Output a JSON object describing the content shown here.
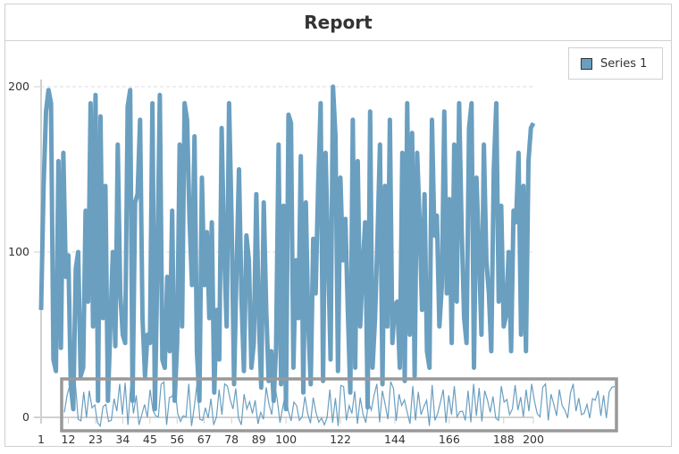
{
  "chart_data": {
    "type": "line",
    "title": "Report",
    "xlabel": "",
    "ylabel": "",
    "xlim": [
      1,
      200
    ],
    "ylim": [
      0,
      200
    ],
    "x_ticks": [
      1,
      12,
      23,
      34,
      45,
      56,
      67,
      78,
      89,
      100,
      122,
      144,
      166,
      188,
      200
    ],
    "y_ticks": [
      0,
      100,
      200
    ],
    "grid": "horizontal dashed",
    "legend_position": "top-right",
    "range_navigator": true,
    "series": [
      {
        "name": "Series 1",
        "color": "#6a9fc0",
        "values": [
          65,
          140,
          185,
          198,
          190,
          35,
          28,
          155,
          42,
          160,
          85,
          98,
          20,
          5,
          90,
          100,
          25,
          30,
          125,
          70,
          190,
          55,
          195,
          10,
          182,
          60,
          140,
          10,
          55,
          100,
          43,
          165,
          75,
          50,
          45,
          188,
          198,
          10,
          130,
          135,
          180,
          60,
          25,
          50,
          45,
          190,
          5,
          90,
          195,
          35,
          30,
          85,
          40,
          125,
          10,
          45,
          165,
          55,
          190,
          180,
          120,
          80,
          170,
          40,
          10,
          145,
          80,
          112,
          60,
          118,
          15,
          65,
          35,
          175,
          100,
          55,
          190,
          120,
          20,
          88,
          150,
          72,
          28,
          110,
          95,
          30,
          45,
          135,
          60,
          18,
          130,
          65,
          22,
          40,
          10,
          42,
          165,
          20,
          128,
          5,
          183,
          178,
          30,
          95,
          60,
          158,
          15,
          130,
          58,
          20,
          108,
          75,
          140,
          190,
          22,
          160,
          100,
          35,
          200,
          170,
          28,
          145,
          95,
          120,
          65,
          15,
          180,
          30,
          155,
          55,
          90,
          118,
          6,
          185,
          30,
          60,
          110,
          165,
          20,
          140,
          55,
          180,
          45,
          68,
          70,
          30,
          160,
          22,
          190,
          50,
          172,
          25,
          160,
          120,
          65,
          135,
          40,
          30,
          180,
          110,
          122,
          55,
          80,
          185,
          75,
          132,
          45,
          165,
          70,
          190,
          115,
          60,
          45,
          175,
          190,
          30,
          145,
          100,
          50,
          165,
          95,
          75,
          40,
          150,
          190,
          70,
          128,
          55,
          62,
          100,
          40,
          125,
          118,
          160,
          50,
          140,
          40,
          155,
          175,
          178
        ]
      }
    ]
  }
}
